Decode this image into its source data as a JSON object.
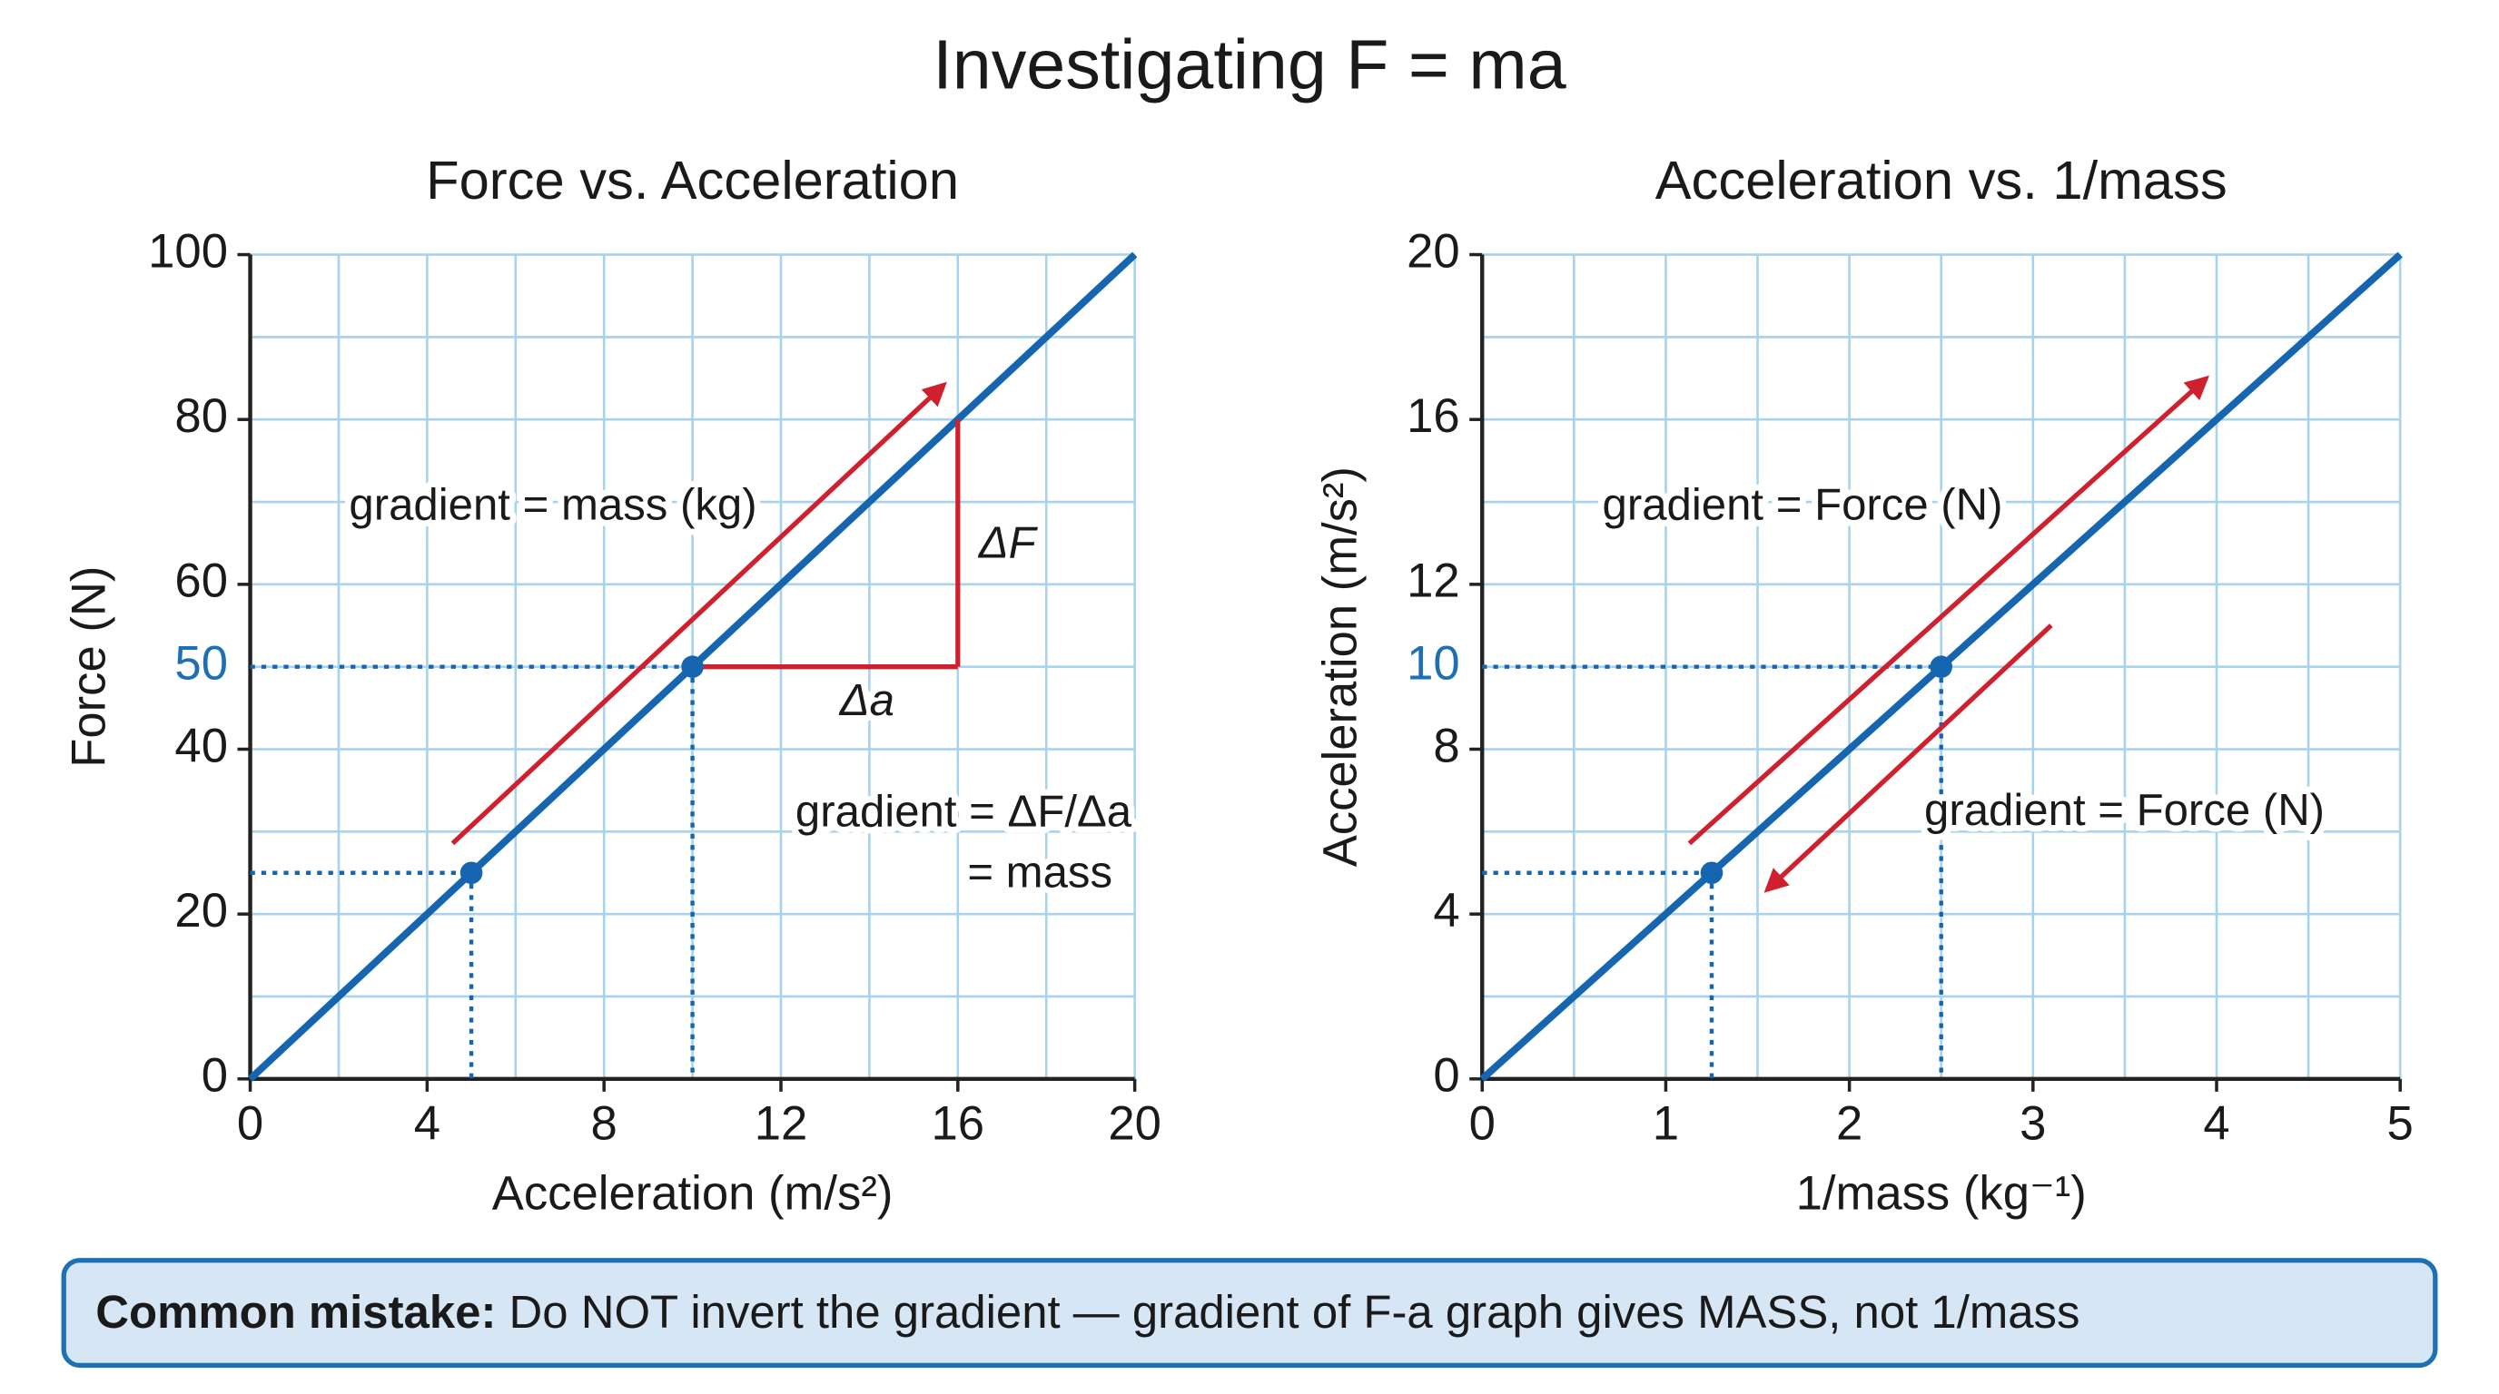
{
  "title": "Investigating F = ma",
  "note": {
    "label": "Common mistake:",
    "text": "Do NOT invert the gradient — gradient of F-a graph gives MASS, not 1/mass"
  },
  "chart_data": [
    {
      "type": "line",
      "title": "Force vs. Acceleration",
      "x_label": "Acceleration (m/s²)",
      "y_label": "Force (N)",
      "xlim": [
        0,
        20
      ],
      "ylim": [
        0,
        100
      ],
      "xticks": [
        0,
        4,
        8,
        12,
        16,
        20
      ],
      "yticks": [
        0,
        20,
        40,
        60,
        80,
        100
      ],
      "grid": true,
      "series": [
        {
          "color": "#1565b0",
          "x": [
            0,
            20
          ],
          "values": [
            0,
            100
          ]
        }
      ],
      "points": {
        "color": "#1565b0",
        "x": [
          5,
          10
        ],
        "values": [
          25,
          50
        ]
      },
      "highlight_ytick": {
        "value": 50,
        "color": "#1f6fb5"
      },
      "slope_triangle": {
        "color": "#d0202e",
        "x": [
          10,
          16
        ],
        "y": [
          50,
          80
        ]
      },
      "annotations": [
        "gradient = mass (kg)",
        "ΔF",
        "Δa",
        "gradient = ΔF/Δa",
        "= mass"
      ]
    },
    {
      "type": "line",
      "title": "Acceleration vs. 1/mass",
      "x_label": "1/mass (kg⁻¹)",
      "y_label": "Acceleration (m/s²)",
      "xlim": [
        0,
        5
      ],
      "ylim": [
        0,
        20
      ],
      "xticks": [
        0,
        1,
        2,
        3,
        4,
        5
      ],
      "yticks": [
        0,
        4,
        8,
        12,
        16,
        20
      ],
      "grid": true,
      "series": [
        {
          "color": "#1565b0",
          "x": [
            0,
            5
          ],
          "values": [
            0,
            20
          ]
        }
      ],
      "points": {
        "color": "#1565b0",
        "x": [
          1.25,
          2.5
        ],
        "values": [
          5,
          10
        ]
      },
      "highlight_ytick": {
        "value": 10,
        "color": "#1f6fb5"
      },
      "annotations": [
        "gradient = Force (N)",
        "gradient = Force (N)"
      ]
    }
  ]
}
